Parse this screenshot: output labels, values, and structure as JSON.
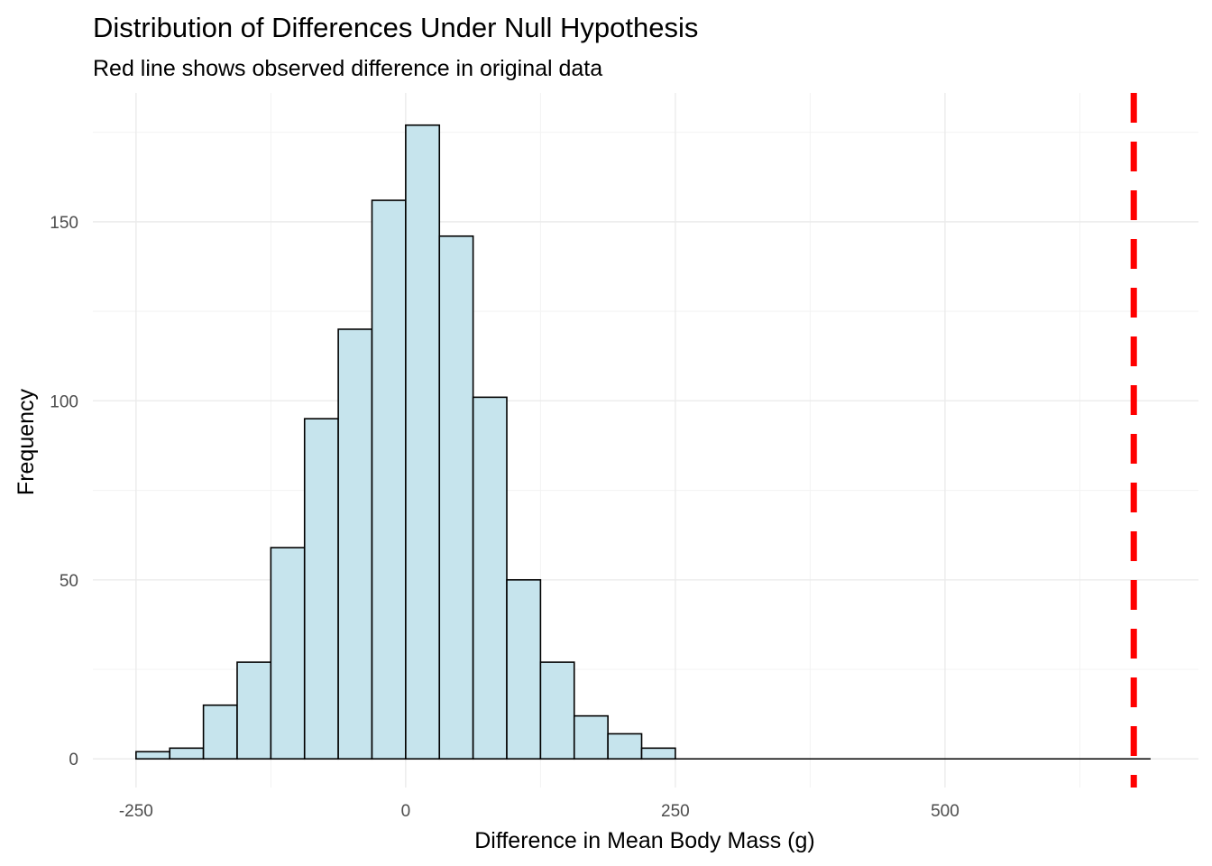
{
  "chart_data": {
    "type": "bar",
    "title": "Distribution of Differences Under Null Hypothesis",
    "subtitle": "Red line shows observed difference in original data",
    "xlabel": "Difference in Mean Body Mass (g)",
    "ylabel": "Frequency",
    "bin_width": 31.25,
    "bins": [
      {
        "x_start": -250.0,
        "count": 2
      },
      {
        "x_start": -218.75,
        "count": 3
      },
      {
        "x_start": -187.5,
        "count": 15
      },
      {
        "x_start": -156.25,
        "count": 27
      },
      {
        "x_start": -125.0,
        "count": 59
      },
      {
        "x_start": -93.75,
        "count": 95
      },
      {
        "x_start": -62.5,
        "count": 120
      },
      {
        "x_start": -31.25,
        "count": 156
      },
      {
        "x_start": 0.0,
        "count": 177
      },
      {
        "x_start": 31.25,
        "count": 146
      },
      {
        "x_start": 62.5,
        "count": 101
      },
      {
        "x_start": 93.75,
        "count": 50
      },
      {
        "x_start": 125.0,
        "count": 27
      },
      {
        "x_start": 156.25,
        "count": 12
      },
      {
        "x_start": 187.5,
        "count": 7
      },
      {
        "x_start": 218.75,
        "count": 3
      }
    ],
    "observed_difference": 675,
    "xlim": [
      -290,
      735
    ],
    "ylim": [
      -8,
      186
    ],
    "x_ticks": [
      -250,
      0,
      250,
      500
    ],
    "x_tick_labels": [
      "-250",
      "0",
      "250",
      "500"
    ],
    "y_ticks": [
      0,
      50,
      100,
      150
    ],
    "y_tick_labels": [
      "0",
      "50",
      "100",
      "150"
    ],
    "grid": true,
    "colors": {
      "bar_fill": "#c6e4ed",
      "bar_stroke": "#000000",
      "observed_line": "#ff0000",
      "grid_major": "#ebebeb",
      "grid_minor": "#f3f3f3"
    }
  }
}
